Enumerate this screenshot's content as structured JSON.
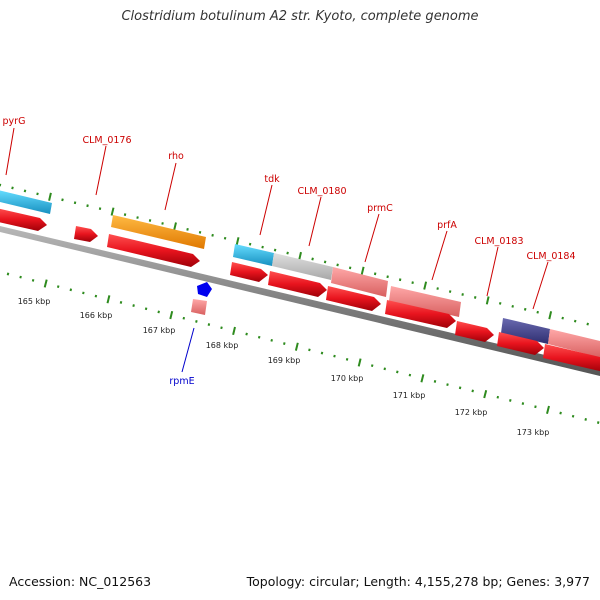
{
  "title": "Clostridium botulinum A2 str. Kyoto, complete genome",
  "footer": {
    "accession": "Accession: NC_012563",
    "summary": "Topology: circular; Length: 4,155,278 bp; Genes: 3,977"
  },
  "colors": {
    "backbone": "#808080",
    "cds": "#e8141e",
    "label": "#cc0000",
    "rna_label": "#0000cc",
    "tick": "#2e8b1e",
    "cyan": "#22aadd",
    "orange": "#ff9900",
    "gray": "#c0c0c0",
    "pink": "#f08080",
    "navy": "#444488"
  },
  "scale_labels": [
    "165 kbp",
    "166 kbp",
    "167 kbp",
    "168 kbp",
    "169 kbp",
    "170 kbp",
    "171 kbp",
    "172 kbp",
    "173 kbp"
  ],
  "gene_labels": [
    "pyrG",
    "CLM_0176",
    "rho",
    "tdk",
    "CLM_0180",
    "prmC",
    "prfA",
    "CLM_0183",
    "CLM_0184",
    "rpmE"
  ]
}
